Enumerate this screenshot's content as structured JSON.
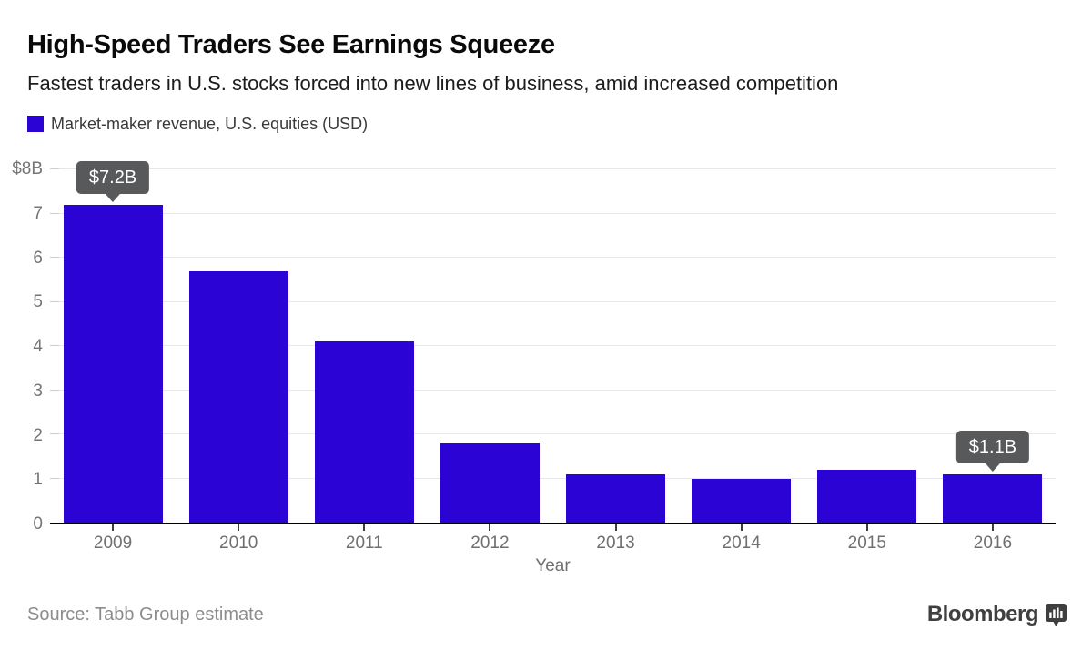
{
  "chart_data": {
    "type": "bar",
    "title": "High-Speed Traders See Earnings Squeeze",
    "subtitle": "Fastest traders in U.S. stocks forced into new lines of business, amid increased competition",
    "legend": [
      {
        "label": "Market-maker revenue, U.S. equities (USD)",
        "color": "#2B04D5"
      }
    ],
    "legend_position": "top-left",
    "categories": [
      "2009",
      "2010",
      "2011",
      "2012",
      "2013",
      "2014",
      "2015",
      "2016"
    ],
    "values": [
      7.2,
      5.7,
      4.1,
      1.8,
      1.1,
      1.0,
      1.2,
      1.1
    ],
    "xlabel": "Year",
    "ylabel": "",
    "ylim": [
      0,
      8
    ],
    "y_ticks": [
      {
        "value": 8,
        "label": "$8B"
      },
      {
        "value": 7,
        "label": "7"
      },
      {
        "value": 6,
        "label": "6"
      },
      {
        "value": 5,
        "label": "5"
      },
      {
        "value": 4,
        "label": "4"
      },
      {
        "value": 3,
        "label": "3"
      },
      {
        "value": 2,
        "label": "2"
      },
      {
        "value": 1,
        "label": "1"
      },
      {
        "value": 0,
        "label": "0"
      }
    ],
    "grid": "horizontal",
    "bar_color": "#2B04D5",
    "gridline_color": "#e8e8e8",
    "annotations": [
      {
        "category": "2009",
        "value": 7.2,
        "label": "$7.2B",
        "bg": "#58595B",
        "text_color": "#FFFFFF"
      },
      {
        "category": "2016",
        "value": 1.1,
        "label": "$1.1B",
        "bg": "#58595B",
        "text_color": "#FFFFFF"
      }
    ]
  },
  "footer": {
    "source": "Source: Tabb Group estimate",
    "brand": "Bloomberg"
  }
}
